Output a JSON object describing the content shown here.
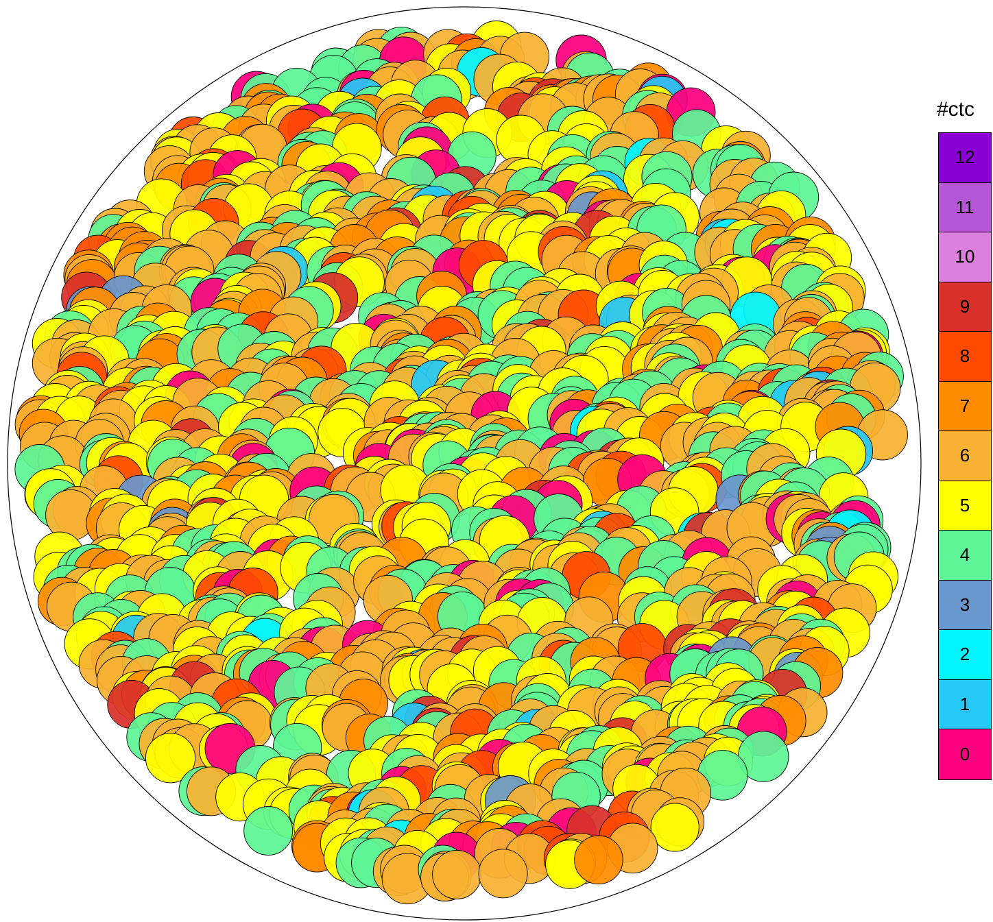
{
  "legend": {
    "title": "#ctc",
    "entries": [
      {
        "label": "12",
        "color": "#8a00d4"
      },
      {
        "label": "11",
        "color": "#b556d6"
      },
      {
        "label": "10",
        "color": "#dd80dd"
      },
      {
        "label": "9",
        "color": "#d9302a"
      },
      {
        "label": "8",
        "color": "#ff4a00"
      },
      {
        "label": "7",
        "color": "#ff8c00"
      },
      {
        "label": "6",
        "color": "#f7b133"
      },
      {
        "label": "5",
        "color": "#ffff00"
      },
      {
        "label": "4",
        "color": "#5ef596"
      },
      {
        "label": "3",
        "color": "#6996cc"
      },
      {
        "label": "2",
        "color": "#00f5ff"
      },
      {
        "label": "1",
        "color": "#25c8f5"
      },
      {
        "label": "0",
        "color": "#ff0080"
      }
    ]
  }
}
